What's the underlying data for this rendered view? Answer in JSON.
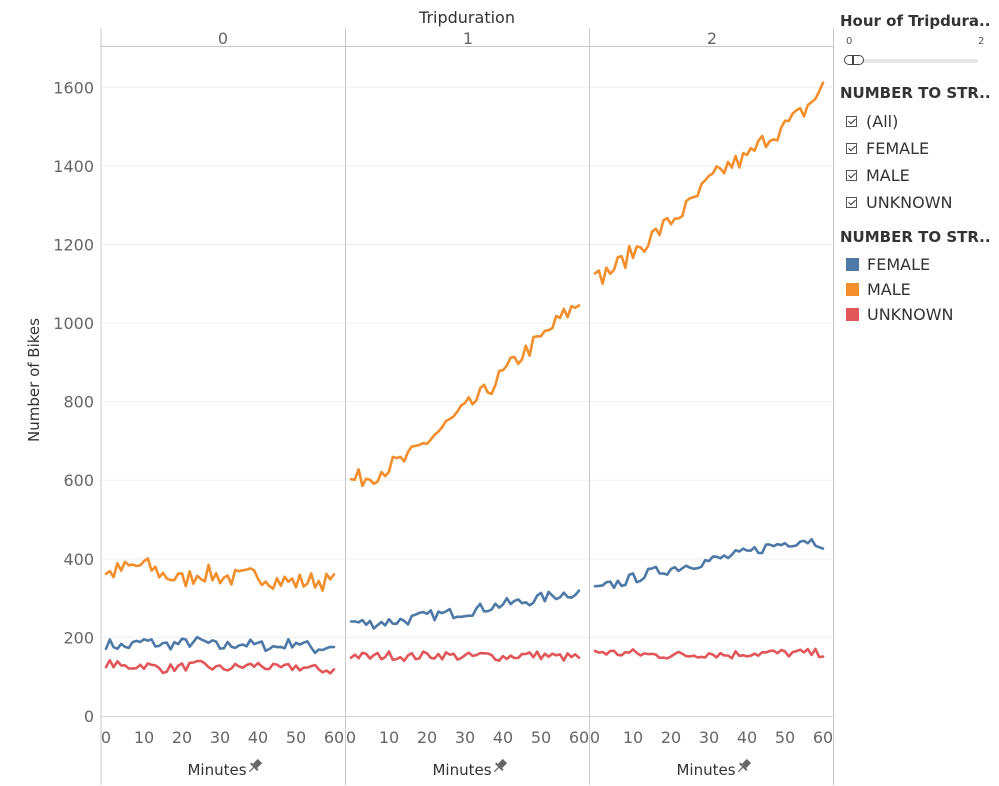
{
  "chart_data": {
    "type": "line",
    "title": "Tripduration",
    "ylabel": "Number of Bikes",
    "xlabel": "Minutes",
    "ylim": [
      0,
      1700
    ],
    "yticks": [
      0,
      200,
      400,
      600,
      800,
      1000,
      1200,
      1400,
      1600
    ],
    "xlim": [
      0,
      60
    ],
    "xticks": [
      0,
      10,
      20,
      30,
      40,
      50,
      60
    ],
    "grid": true,
    "legend_position": "right",
    "panels": [
      {
        "label": "0",
        "x": [
          0,
          5,
          10,
          15,
          20,
          25,
          30,
          35,
          40,
          45,
          50,
          55,
          60
        ],
        "series": [
          {
            "name": "FEMALE",
            "values": [
              185,
              175,
              190,
              180,
              185,
              190,
              175,
              185,
              180,
              175,
              190,
              170,
              180
            ]
          },
          {
            "name": "MALE",
            "values": [
              360,
              375,
              385,
              360,
              345,
              365,
              355,
              350,
              360,
              345,
              340,
              345,
              340
            ]
          },
          {
            "name": "UNKNOWN",
            "values": [
              135,
              125,
              130,
              120,
              125,
              130,
              120,
              125,
              130,
              120,
              125,
              120,
              115
            ]
          }
        ]
      },
      {
        "label": "1",
        "x": [
          0,
          5,
          10,
          15,
          20,
          25,
          30,
          35,
          40,
          45,
          50,
          55,
          60
        ],
        "series": [
          {
            "name": "FEMALE",
            "values": [
              240,
              235,
              240,
              245,
              255,
              260,
              265,
              275,
              285,
              290,
              300,
              310,
              315
            ]
          },
          {
            "name": "MALE",
            "values": [
              600,
              610,
              635,
              655,
              700,
              740,
              780,
              820,
              870,
              920,
              960,
              1010,
              1050
            ]
          },
          {
            "name": "UNKNOWN",
            "values": [
              155,
              150,
              155,
              150,
              155,
              155,
              150,
              155,
              150,
              155,
              155,
              150,
              150
            ]
          }
        ]
      },
      {
        "label": "2",
        "x": [
          0,
          5,
          10,
          15,
          20,
          25,
          30,
          35,
          40,
          45,
          50,
          55,
          60
        ],
        "series": [
          {
            "name": "FEMALE",
            "values": [
              320,
              335,
              350,
              365,
              375,
              385,
              395,
              405,
              415,
              430,
              440,
              450,
              440
            ]
          },
          {
            "name": "MALE",
            "values": [
              1110,
              1140,
              1180,
              1220,
              1260,
              1300,
              1360,
              1400,
              1420,
              1470,
              1500,
              1540,
              1600
            ]
          },
          {
            "name": "UNKNOWN",
            "values": [
              165,
              160,
              160,
              155,
              155,
              155,
              160,
              155,
              160,
              160,
              160,
              160,
              160
            ]
          }
        ]
      }
    ]
  },
  "colors": {
    "FEMALE": "#4e79a7",
    "MALE": "#f28e2b",
    "UNKNOWN": "#e15759"
  },
  "icons": {
    "pin": "pin-icon"
  },
  "legend": {
    "slider_title": "Hour of Tripdura..",
    "slider_min": "0",
    "slider_max": "2",
    "slider_value": 0,
    "filter_title": "NUMBER TO STR..",
    "filter_items": [
      {
        "label": "(All)",
        "checked": true
      },
      {
        "label": "FEMALE",
        "checked": true
      },
      {
        "label": "MALE",
        "checked": true
      },
      {
        "label": "UNKNOWN",
        "checked": true
      }
    ],
    "color_title": "NUMBER TO STR..",
    "color_items": [
      {
        "label": "FEMALE",
        "color": "#4e79a7"
      },
      {
        "label": "MALE",
        "color": "#f28e2b"
      },
      {
        "label": "UNKNOWN",
        "color": "#e15759"
      }
    ]
  }
}
